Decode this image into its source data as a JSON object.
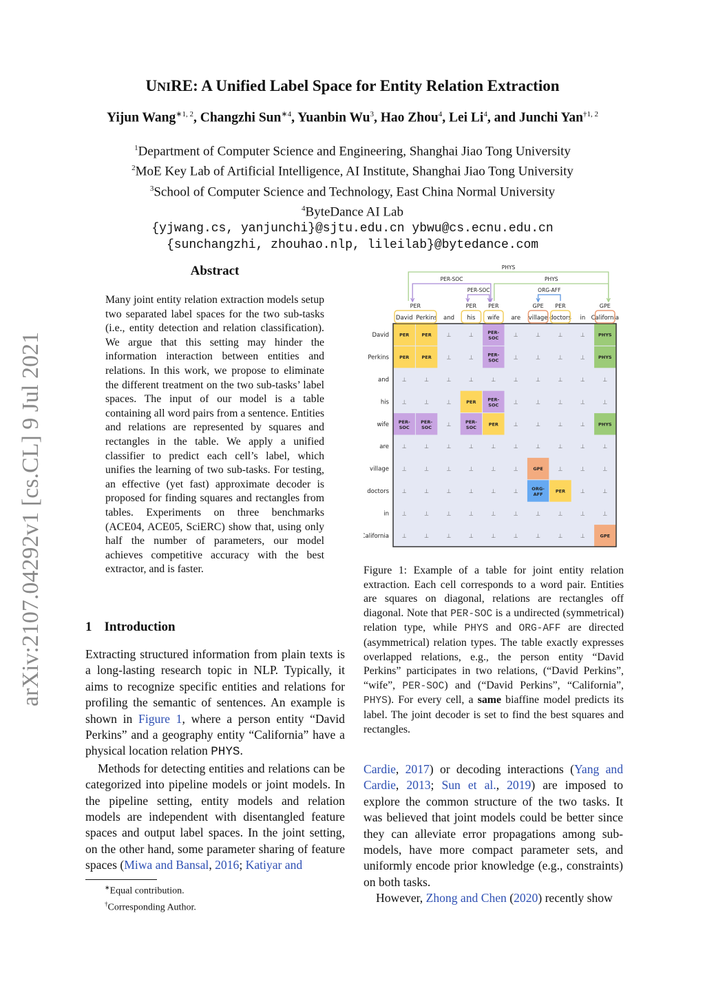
{
  "title": {
    "prefix_sc": "U",
    "sc_rest": "NI",
    "rest": "RE: A Unified Label Space for Entity Relation Extraction"
  },
  "authors": [
    {
      "name": "Yijun Wang",
      "sup": "∗1, 2"
    },
    {
      "name": "Changzhi Sun",
      "sup": "∗4"
    },
    {
      "name": "Yuanbin Wu",
      "sup": "3"
    },
    {
      "name": "Hao Zhou",
      "sup": "4"
    },
    {
      "name": "Lei Li",
      "sup": "4"
    },
    {
      "name": "Junchi Yan",
      "sup": "†1, 2"
    }
  ],
  "author_and": "and",
  "affiliations": [
    {
      "sup": "1",
      "text": "Department of Computer Science and Engineering, Shanghai Jiao Tong University"
    },
    {
      "sup": "2",
      "text": "MoE Key Lab of Artificial Intelligence, AI Institute, Shanghai Jiao Tong University"
    },
    {
      "sup": "3",
      "text": "School of Computer Science and Technology, East China Normal University"
    },
    {
      "sup": "4",
      "text": "ByteDance AI Lab"
    }
  ],
  "emails": [
    "{yjwang.cs, yanjunchi}@sjtu.edu.cn ybwu@cs.ecnu.edu.cn",
    "{sunchangzhi, zhouhao.nlp, lileilab}@bytedance.com"
  ],
  "arxiv_id": "arXiv:2107.04292v1  [cs.CL]  9 Jul 2021",
  "abstract": {
    "heading": "Abstract",
    "body": "Many joint entity relation extraction models setup two separated label spaces for the two sub-tasks (i.e., entity detection and relation classification). We argue that this setting may hinder the information interaction between entities and relations. In this work, we propose to eliminate the different treatment on the two sub-tasks’ label spaces. The input of our model is a table containing all word pairs from a sentence. Entities and relations are represented by squares and rectangles in the table. We apply a unified classifier to predict each cell’s label, which unifies the learning of two sub-tasks. For testing, an effective (yet fast) approximate decoder is proposed for finding squares and rectangles from tables. Experiments on three benchmarks (ACE04, ACE05, SciERC) show that, using only half the number of parameters, our model achieves competitive accuracy with the best extractor, and is faster."
  },
  "intro": {
    "number": "1",
    "heading": "Introduction",
    "paragraphs": [
      [
        {
          "t": "Extracting structured information from plain texts is a long-lasting research topic in NLP. Typically, it aims to recognize specific entities and relations for profiling the semantic of sentences. An example is shown in "
        },
        {
          "t": "Figure 1",
          "link": true
        },
        {
          "t": ", where a person entity “David Perkins” and a geography entity “California” have a physical location relation "
        },
        {
          "t": "PHYS",
          "mono": true
        },
        {
          "t": "."
        }
      ],
      [
        {
          "t": "Methods for detecting entities and relations can be categorized into pipeline models or joint models. In the pipeline setting, entity models and relation models are independent with disentangled feature spaces and output label spaces. In the joint setting, on the other hand, some parameter sharing of feature spaces ("
        },
        {
          "t": "Miwa and Bansal",
          "link": true
        },
        {
          "t": ", "
        },
        {
          "t": "2016",
          "link": true
        },
        {
          "t": "; "
        },
        {
          "t": "Katiyar and",
          "link": true
        }
      ]
    ]
  },
  "footnotes": [
    {
      "sup": "∗",
      "text": "Equal contribution."
    },
    {
      "sup": "†",
      "text": "Corresponding Author."
    }
  ],
  "caption": [
    {
      "t": "Figure 1:  Example of a table for joint entity relation extraction. Each cell corresponds to a word pair. Entities are squares on diagonal, relations are rectangles off diagonal. Note that "
    },
    {
      "t": "PER-SOC",
      "mono": true
    },
    {
      "t": " is a undirected (symmetrical) relation type, while "
    },
    {
      "t": "PHYS",
      "mono": true
    },
    {
      "t": " and "
    },
    {
      "t": "ORG-AFF",
      "mono": true
    },
    {
      "t": " are directed (asymmetrical) relation types. The table exactly expresses overlapped relations, e.g., the person entity “David Perkins” participates in two relations, (“David Perkins”, “wife”, "
    },
    {
      "t": "PER-SOC",
      "mono": true
    },
    {
      "t": ") and (“David Perkins”, “California”, "
    },
    {
      "t": "PHYS",
      "mono": true
    },
    {
      "t": "). For every cell, a "
    },
    {
      "t": "same",
      "bold": true
    },
    {
      "t": " biaffine model predicts its label. The joint decoder is set to find the best squares and rectangles."
    }
  ],
  "right_body": [
    [
      {
        "t": "Cardie",
        "link": true
      },
      {
        "t": ", "
      },
      {
        "t": "2017",
        "link": true
      },
      {
        "t": ") or decoding interactions ("
      },
      {
        "t": "Yang and Cardie",
        "link": true
      },
      {
        "t": ", "
      },
      {
        "t": "2013",
        "link": true
      },
      {
        "t": "; "
      },
      {
        "t": "Sun et al.",
        "link": true
      },
      {
        "t": ", "
      },
      {
        "t": "2019",
        "link": true
      },
      {
        "t": ") are imposed to explore the common structure of the two tasks. It was believed that joint models could be better since they can alleviate error propagations among sub-models, have more compact parameter sets, and uniformly encode prior knowledge (e.g., constraints) on both tasks."
      }
    ],
    [
      {
        "t": "However, "
      },
      {
        "t": "Zhong and Chen",
        "link": true
      },
      {
        "t": " ("
      },
      {
        "t": "2020",
        "link": true
      },
      {
        "t": ") recently show"
      }
    ]
  ],
  "figure": {
    "words": [
      "David",
      "Perkins",
      "and",
      "his",
      "wife",
      "are",
      "village",
      "doctors",
      "in",
      "California"
    ],
    "entity_labels": [
      {
        "label": "PER",
        "words": [
          0,
          1
        ],
        "type": "PER"
      },
      {
        "label": "PER",
        "words": [
          3,
          3
        ],
        "type": "PER"
      },
      {
        "label": "PER",
        "words": [
          4,
          4
        ],
        "type": "PER"
      },
      {
        "label": "GPE",
        "words": [
          6,
          6
        ],
        "type": "GPE"
      },
      {
        "label": "PER",
        "words": [
          7,
          7
        ],
        "type": "PER"
      },
      {
        "label": "GPE",
        "words": [
          9,
          9
        ],
        "type": "GPE"
      }
    ],
    "relations": [
      {
        "label": "PHYS",
        "from": 0,
        "to": 9,
        "type": "PHYS"
      },
      {
        "label": "PER-SOC",
        "from": 0,
        "to": 4,
        "type": "PER-SOC"
      },
      {
        "label": "PHYS",
        "from": 4,
        "to": 9,
        "type": "PHYS"
      },
      {
        "label": "PER-SOC",
        "from": 3,
        "to": 4,
        "type": "PER-SOC"
      },
      {
        "label": "ORG-AFF",
        "from": 7,
        "to": 6,
        "type": "ORG-AFF"
      }
    ],
    "null_symbol": "⊥",
    "cells": [
      [
        "PER",
        "PER",
        "",
        "",
        "PER-SOC",
        "",
        "",
        "",
        "",
        "PHYS"
      ],
      [
        "PER",
        "PER",
        "",
        "",
        "PER-SOC",
        "",
        "",
        "",
        "",
        "PHYS"
      ],
      [
        "",
        "",
        "",
        "",
        "",
        "",
        "",
        "",
        "",
        ""
      ],
      [
        "",
        "",
        "",
        "PER",
        "PER-SOC",
        "",
        "",
        "",
        "",
        ""
      ],
      [
        "PER-SOC",
        "PER-SOC",
        "",
        "PER-SOC",
        "PER",
        "",
        "",
        "",
        "",
        "PHYS"
      ],
      [
        "",
        "",
        "",
        "",
        "",
        "",
        "",
        "",
        "",
        ""
      ],
      [
        "",
        "",
        "",
        "",
        "",
        "",
        "GPE",
        "",
        "",
        ""
      ],
      [
        "",
        "",
        "",
        "",
        "",
        "",
        "ORG-AFF",
        "PER",
        "",
        ""
      ],
      [
        "",
        "",
        "",
        "",
        "",
        "",
        "",
        "",
        "",
        ""
      ],
      [
        "",
        "",
        "",
        "",
        "",
        "",
        "",
        "",
        "",
        "GPE"
      ]
    ],
    "colors": {
      "PER": "#fdd65c",
      "PER-SOC": "#c8a4e2",
      "PHYS": "#9ccb78",
      "GPE": "#f3ab7f",
      "ORG-AFF": "#66a9f2",
      "empty": "#e5e8f4",
      "PER_box": "#f2cd5e",
      "GPE_box": "#e99a72",
      "PER-SOC_line": "#a98bd6",
      "PHYS_line": "#a8d08d",
      "ORG-AFF_line": "#5b95e0"
    }
  }
}
